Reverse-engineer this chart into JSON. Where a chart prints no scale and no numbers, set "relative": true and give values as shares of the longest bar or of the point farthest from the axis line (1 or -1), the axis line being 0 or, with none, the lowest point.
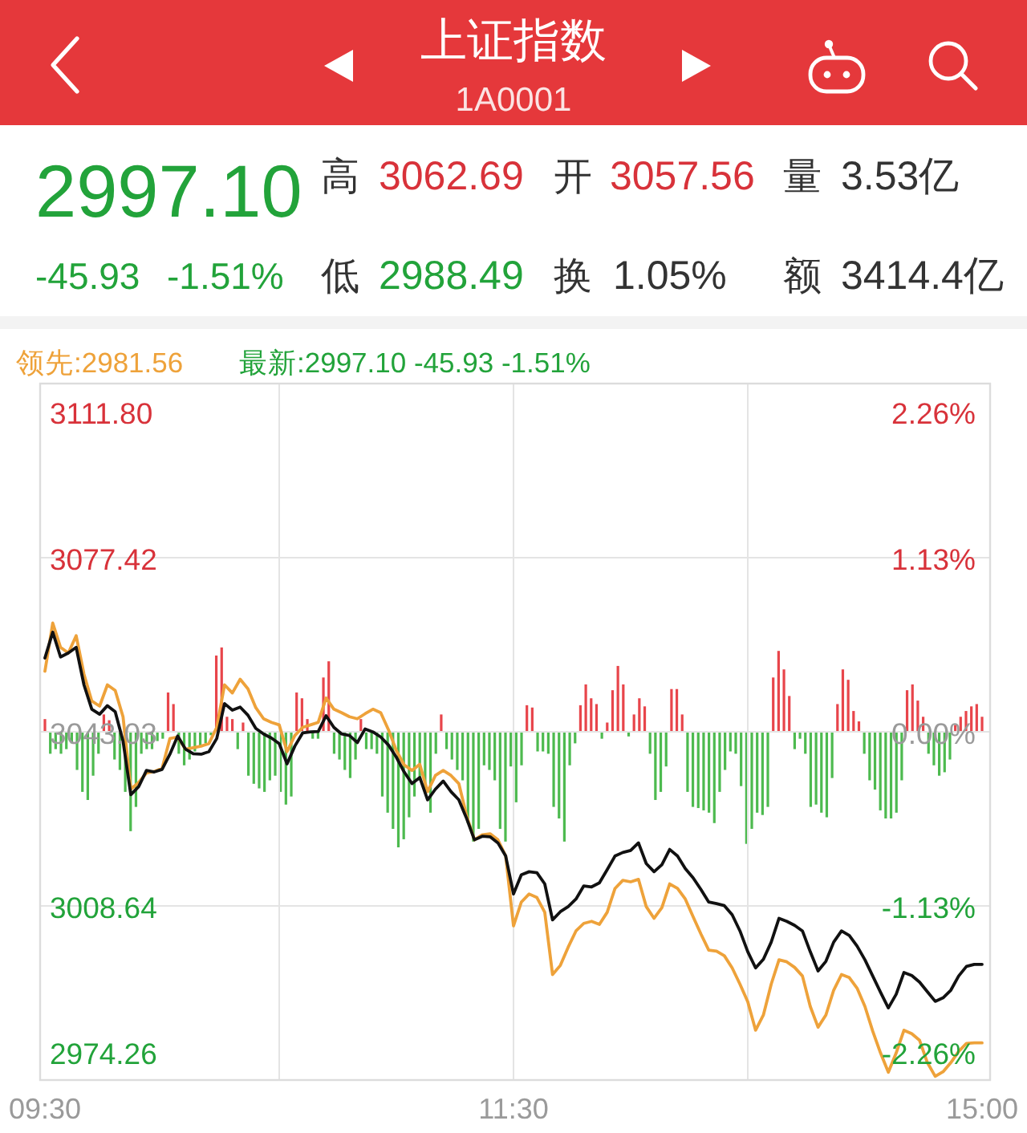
{
  "chart_data": [
    {
      "type": "line",
      "title": "上证指数",
      "subtitle": "1A0001",
      "annotations": [
        "2997.10",
        "-45.93",
        "-1.51%",
        "高",
        "3062.69",
        "开",
        "3057.56",
        "量",
        "3.53亿",
        "低",
        "2988.49",
        "换",
        "1.05%",
        "额",
        "3414.4亿",
        "最新:2997.10 -45.93 -1.51%"
      ],
      "categories": [
        "09:30",
        null,
        null,
        null,
        null,
        null,
        null,
        null,
        null,
        null,
        null,
        null,
        null,
        null,
        null,
        null,
        null,
        null,
        null,
        null,
        null,
        null,
        null,
        null,
        null,
        null,
        null,
        null,
        null,
        null,
        null,
        null,
        null,
        null,
        null,
        null,
        null,
        null,
        null,
        null,
        null,
        null,
        null,
        null,
        null,
        null,
        null,
        null,
        null,
        null,
        null,
        null,
        null,
        null,
        null,
        null,
        null,
        null,
        null,
        null,
        "11:30",
        null,
        null,
        null,
        null,
        null,
        null,
        null,
        null,
        null,
        null,
        null,
        null,
        null,
        null,
        null,
        null,
        null,
        null,
        null,
        null,
        null,
        null,
        null,
        null,
        null,
        null,
        null,
        null,
        null,
        null,
        null,
        null,
        null,
        null,
        null,
        null,
        null,
        null,
        null,
        null,
        null,
        null,
        null,
        null,
        null,
        null,
        null,
        null,
        null,
        null,
        null,
        null,
        null,
        null,
        null,
        null,
        null,
        null,
        null,
        "15:00"
      ],
      "series": [
        {
          "name": "领先:2981.56",
          "color": "#eea23a",
          "values": [
            3055.0,
            3064.5,
            3059.7,
            3058.6,
            3062.0,
            3054.4,
            3049.1,
            3048.1,
            3052.3,
            3051.2,
            3046.0,
            3031.7,
            3033.0,
            3034.9,
            3035.2,
            3035.8,
            3041.7,
            3042.0,
            3039.6,
            3039.9,
            3040.2,
            3040.7,
            3043.9,
            3052.3,
            3050.7,
            3053.4,
            3051.5,
            3047.8,
            3045.6,
            3044.9,
            3044.4,
            3039.1,
            3042.3,
            3043.9,
            3044.4,
            3044.9,
            3049.7,
            3047.5,
            3046.8,
            3046.0,
            3045.6,
            3046.6,
            3047.5,
            3046.8,
            3043.4,
            3039.3,
            3036.5,
            3035.4,
            3036.6,
            3031.2,
            3034.4,
            3035.4,
            3034.4,
            3032.8,
            3026.4,
            3021.7,
            3022.7,
            3022.9,
            3021.7,
            3018.5,
            3004.7,
            3009.4,
            3011.0,
            3010.3,
            3007.4,
            2995.1,
            2996.9,
            3000.5,
            3003.7,
            3005.2,
            3005.6,
            3005.0,
            3007.4,
            3012.1,
            3013.7,
            3013.4,
            3013.9,
            3008.5,
            3006.2,
            3008.3,
            3013.0,
            3012.1,
            3010.0,
            3006.5,
            3003.1,
            2999.9,
            2999.7,
            2998.8,
            2996.4,
            2993.2,
            2989.7,
            2984.1,
            2987.1,
            2993.2,
            2998.0,
            2997.6,
            2996.5,
            2994.8,
            2988.8,
            2984.7,
            2987.1,
            2992.0,
            2995.1,
            2994.5,
            2992.4,
            2988.8,
            2983.9,
            2979.6,
            2975.8,
            2979.6,
            2984.1,
            2983.4,
            2982.1,
            2977.7,
            2975.0,
            2975.9,
            2977.7,
            2979.9,
            2981.5,
            2981.6,
            2981.6
          ]
        },
        {
          "color": "#111111",
          "values": [
            3057.6,
            3062.7,
            3057.8,
            3058.6,
            3059.7,
            3052.3,
            3047.5,
            3046.5,
            3048.2,
            3047.0,
            3041.2,
            3030.6,
            3032.2,
            3035.4,
            3035.1,
            3035.6,
            3038.6,
            3042.2,
            3039.6,
            3038.7,
            3038.6,
            3039.1,
            3041.7,
            3048.6,
            3047.3,
            3047.9,
            3046.3,
            3043.7,
            3042.6,
            3041.8,
            3040.7,
            3036.7,
            3040.2,
            3042.8,
            3043.0,
            3043.1,
            3046.2,
            3043.9,
            3042.6,
            3042.3,
            3040.9,
            3043.6,
            3043.0,
            3042.0,
            3040.4,
            3038.0,
            3035.1,
            3032.8,
            3034.0,
            3029.6,
            3031.7,
            3033.3,
            3031.2,
            3029.6,
            3025.9,
            3021.7,
            3022.4,
            3022.3,
            3021.1,
            3018.5,
            3011.0,
            3014.8,
            3015.4,
            3015.2,
            3013.0,
            3005.9,
            3007.5,
            3008.5,
            3010.0,
            3012.6,
            3012.4,
            3013.2,
            3015.8,
            3018.5,
            3019.2,
            3019.6,
            3021.1,
            3017.0,
            3015.4,
            3016.8,
            3019.8,
            3018.5,
            3016.0,
            3014.2,
            3011.9,
            3009.4,
            3009.1,
            3008.7,
            3006.9,
            3003.7,
            2999.6,
            2996.4,
            2998.1,
            3001.5,
            3006.2,
            3005.6,
            3004.8,
            3003.7,
            2999.6,
            2995.8,
            2997.7,
            3001.5,
            3003.7,
            3002.8,
            3000.7,
            2998.0,
            2994.8,
            2991.6,
            2988.5,
            2991.2,
            2995.5,
            2994.9,
            2993.6,
            2991.7,
            2989.8,
            2990.5,
            2992.0,
            2994.8,
            2996.7,
            2997.1,
            2997.1
          ]
        }
      ],
      "ylim": [
        2974.26,
        3111.8
      ],
      "yticks": [
        {
          "value": 3111.8,
          "label": "3111.80"
        },
        3077.42,
        3043.03,
        3008.64,
        2974.26
      ],
      "y2lim": [
        -2.26,
        2.26
      ],
      "y2ticks": [
        {
          "value": 2.26,
          "label": "2.26%"
        },
        {
          "value": 1.13,
          "label": "1.13%"
        },
        {
          "value": 0,
          "label": "0.00%"
        },
        {
          "value": -1.13,
          "label": "-1.13%"
        },
        {
          "value": -2.26,
          "label": "-2.26%"
        }
      ],
      "grid": true,
      "legend": "top left"
    },
    {
      "type": "bar",
      "relative": true,
      "tick_labels": false,
      "categories": [
        "09:30",
        null,
        null,
        null,
        null,
        null,
        null,
        null,
        null,
        null,
        null,
        null,
        null,
        null,
        null,
        null,
        null,
        null,
        null,
        null,
        null,
        null,
        null,
        null,
        null,
        null,
        null,
        null,
        null,
        null,
        null,
        null,
        null,
        null,
        null,
        null,
        null,
        null,
        null,
        null,
        null,
        null,
        null,
        null,
        null,
        null,
        null,
        null,
        null,
        null,
        null,
        null,
        null,
        null,
        null,
        null,
        null,
        null,
        null,
        null,
        null,
        null,
        null,
        null,
        null,
        null,
        null,
        null,
        null,
        null,
        null,
        null,
        null,
        null,
        null,
        null,
        null,
        null,
        null,
        null,
        null,
        null,
        null,
        null,
        null,
        null,
        null,
        null,
        "11:30",
        null,
        null,
        null,
        null,
        null,
        null,
        null,
        null,
        null,
        null,
        null,
        null,
        null,
        null,
        null,
        null,
        null,
        null,
        null,
        null,
        null,
        null,
        null,
        null,
        null,
        null,
        null,
        null,
        null,
        null,
        null,
        null,
        null,
        null,
        null,
        null,
        null,
        null,
        null,
        null,
        null,
        null,
        null,
        null,
        null,
        null,
        null,
        null,
        null,
        null,
        null,
        null,
        null,
        null,
        null,
        null,
        null,
        null,
        null,
        null,
        null,
        null,
        null,
        null,
        null,
        null,
        null,
        null,
        null,
        null,
        null,
        null,
        null,
        null,
        null,
        null,
        null,
        null,
        null,
        null,
        null,
        null,
        null,
        null,
        null,
        null,
        "15:00"
      ],
      "values": [
        0.11,
        -0.19,
        -0.15,
        -0.19,
        -0.15,
        -0.1,
        -0.33,
        -0.52,
        -0.59,
        -0.38,
        -0.19,
        0.15,
        0.1,
        -0.24,
        -0.33,
        -0.52,
        -0.86,
        -0.65,
        -0.19,
        -0.15,
        -0.15,
        -0.08,
        -0.06,
        0.34,
        0.24,
        -0.19,
        -0.29,
        -0.24,
        -0.17,
        -0.12,
        -0.1,
        -0.03,
        0.66,
        0.73,
        0.13,
        0.11,
        -0.15,
        0.08,
        -0.38,
        -0.45,
        -0.49,
        -0.52,
        -0.42,
        -0.38,
        -0.52,
        -0.63,
        -0.56,
        0.34,
        0.29,
        0.11,
        -0.06,
        -0.06,
        0.47,
        0.61,
        -0.19,
        -0.24,
        -0.33,
        -0.4,
        -0.24,
        0.11,
        -0.15,
        -0.15,
        -0.19,
        -0.56,
        -0.7,
        -0.84,
        -1,
        -0.93,
        -0.74,
        -0.56,
        -0.42,
        -0.52,
        -0.7,
        -0.19,
        0.15,
        -0.15,
        -0.24,
        -0.33,
        -0.42,
        -0.79,
        -0.95,
        -0.84,
        -0.29,
        -0.33,
        -0.42,
        -0.84,
        -0.95,
        -0.3,
        -0.61,
        -0.29,
        0.23,
        0.21,
        -0.17,
        -0.17,
        -0.19,
        -0.65,
        -0.75,
        -0.95,
        -0.29,
        -0.1,
        0.23,
        0.41,
        0.29,
        0.24,
        -0.06,
        0.08,
        0.36,
        0.57,
        0.41,
        -0.04,
        0.15,
        0.29,
        0.22,
        -0.19,
        -0.59,
        -0.52,
        -0.3,
        0.37,
        0.37,
        0.15,
        -0.52,
        -0.65,
        -0.66,
        -0.68,
        -0.7,
        -0.79,
        -0.52,
        -0.33,
        -0.17,
        -0.19,
        -0.47,
        -0.97,
        -0.84,
        -0.7,
        -0.72,
        -0.65,
        0.47,
        0.7,
        0.54,
        0.31,
        -0.15,
        -0.06,
        -0.19,
        -0.65,
        -0.63,
        -0.7,
        -0.74,
        -0.4,
        0.24,
        0.54,
        0.45,
        0.18,
        0.09,
        -0.19,
        -0.42,
        -0.5,
        -0.68,
        -0.75,
        -0.75,
        -0.7,
        -0.42,
        0.36,
        0.41,
        0.27,
        0.13,
        -0.19,
        -0.29,
        -0.38,
        -0.35,
        -0.24,
        0.06,
        0.13,
        0.18,
        0.22,
        0.24,
        0.13
      ],
      "colors": [
        "#e8454b",
        "#4dba4f",
        "#4dba4f",
        "#4dba4f",
        "#4dba4f",
        "#4dba4f",
        "#4dba4f",
        "#4dba4f",
        "#4dba4f",
        "#4dba4f",
        "#4dba4f",
        "#e8454b",
        "#e8454b",
        "#4dba4f",
        "#4dba4f",
        "#4dba4f",
        "#4dba4f",
        "#4dba4f",
        "#4dba4f",
        "#4dba4f",
        "#4dba4f",
        "#4dba4f",
        "#4dba4f",
        "#e8454b",
        "#e8454b",
        "#4dba4f",
        "#4dba4f",
        "#4dba4f",
        "#4dba4f",
        "#4dba4f",
        "#4dba4f",
        "#4dba4f",
        "#e8454b",
        "#e8454b",
        "#e8454b",
        "#e8454b",
        "#4dba4f",
        "#e8454b",
        "#4dba4f",
        "#4dba4f",
        "#4dba4f",
        "#4dba4f",
        "#4dba4f",
        "#4dba4f",
        "#4dba4f",
        "#4dba4f",
        "#4dba4f",
        "#e8454b",
        "#e8454b",
        "#e8454b",
        "#4dba4f",
        "#4dba4f",
        "#e8454b",
        "#e8454b",
        "#4dba4f",
        "#4dba4f",
        "#4dba4f",
        "#4dba4f",
        "#4dba4f",
        "#e8454b",
        "#4dba4f",
        "#4dba4f",
        "#4dba4f",
        "#4dba4f",
        "#4dba4f",
        "#4dba4f",
        "#4dba4f",
        "#4dba4f",
        "#4dba4f",
        "#4dba4f",
        "#4dba4f",
        "#4dba4f",
        "#4dba4f",
        "#4dba4f",
        "#e8454b",
        "#4dba4f",
        "#4dba4f",
        "#4dba4f",
        "#4dba4f",
        "#4dba4f",
        "#4dba4f",
        "#4dba4f",
        "#4dba4f",
        "#4dba4f",
        "#4dba4f",
        "#4dba4f",
        "#4dba4f",
        "#4dba4f",
        "#4dba4f",
        "#4dba4f",
        "#e8454b",
        "#e8454b",
        "#4dba4f",
        "#4dba4f",
        "#4dba4f",
        "#4dba4f",
        "#4dba4f",
        "#4dba4f",
        "#4dba4f",
        "#4dba4f",
        "#e8454b",
        "#e8454b",
        "#e8454b",
        "#e8454b",
        "#4dba4f",
        "#e8454b",
        "#e8454b",
        "#e8454b",
        "#e8454b",
        "#4dba4f",
        "#e8454b",
        "#e8454b",
        "#e8454b",
        "#4dba4f",
        "#4dba4f",
        "#4dba4f",
        "#4dba4f",
        "#e8454b",
        "#e8454b",
        "#e8454b",
        "#4dba4f",
        "#4dba4f",
        "#4dba4f",
        "#4dba4f",
        "#4dba4f",
        "#4dba4f",
        "#4dba4f",
        "#4dba4f",
        "#4dba4f",
        "#4dba4f",
        "#4dba4f",
        "#4dba4f",
        "#4dba4f",
        "#4dba4f",
        "#4dba4f",
        "#4dba4f",
        "#e8454b",
        "#e8454b",
        "#e8454b",
        "#e8454b",
        "#4dba4f",
        "#4dba4f",
        "#4dba4f",
        "#4dba4f",
        "#4dba4f",
        "#4dba4f",
        "#4dba4f",
        "#4dba4f",
        "#e8454b",
        "#e8454b",
        "#e8454b",
        "#e8454b",
        "#e8454b",
        "#4dba4f",
        "#4dba4f",
        "#4dba4f",
        "#4dba4f",
        "#4dba4f",
        "#4dba4f",
        "#4dba4f",
        "#4dba4f",
        "#e8454b",
        "#e8454b",
        "#e8454b",
        "#e8454b",
        "#4dba4f",
        "#4dba4f",
        "#4dba4f",
        "#4dba4f",
        "#4dba4f",
        "#e8454b",
        "#e8454b",
        "#e8454b",
        "#e8454b",
        "#e8454b",
        "#e8454b"
      ]
    }
  ]
}
